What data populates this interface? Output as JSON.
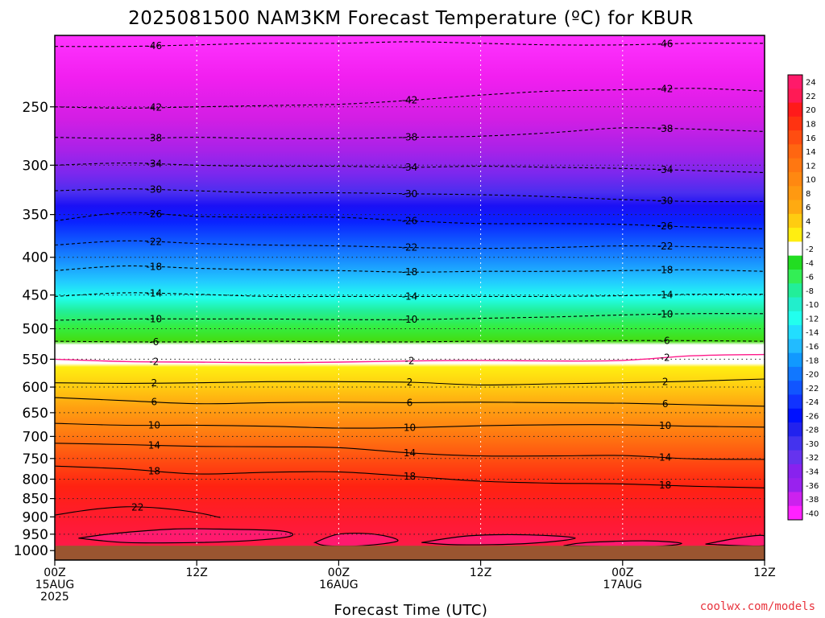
{
  "chart_data": {
    "type": "heatmap",
    "title": "2025081500 NAM3KM Forecast Temperature (ºC) for KBUR",
    "xlabel": "Forecast Time (UTC)",
    "x_ticks": [
      {
        "hour": 0,
        "lines": [
          "00Z",
          "15AUG",
          "2025"
        ]
      },
      {
        "hour": 12,
        "lines": [
          "12Z"
        ]
      },
      {
        "hour": 24,
        "lines": [
          "00Z",
          "16AUG"
        ]
      },
      {
        "hour": 36,
        "lines": [
          "12Z"
        ]
      },
      {
        "hour": 48,
        "lines": [
          "00Z",
          "17AUG"
        ]
      },
      {
        "hour": 60,
        "lines": [
          "12Z"
        ]
      }
    ],
    "xlim": [
      0,
      60
    ],
    "y_ticks": [
      "250",
      "300",
      "350",
      "400",
      "450",
      "500",
      "550",
      "600",
      "650",
      "700",
      "750",
      "800",
      "850",
      "900",
      "950",
      "1000"
    ],
    "y_scale": "log-pressure (hPa, inverted)",
    "ylim": [
      1030,
      200
    ],
    "surface_pressure": 985,
    "colorbar_labels": [
      "24",
      "22",
      "20",
      "18",
      "16",
      "14",
      "12",
      "10",
      "8",
      "6",
      "4",
      "2",
      "-2",
      "-4",
      "-6",
      "-8",
      "-10",
      "-12",
      "-14",
      "-16",
      "-18",
      "-20",
      "-22",
      "-24",
      "-26",
      "-28",
      "-30",
      "-32",
      "-34",
      "-36",
      "-38",
      "-40"
    ],
    "colorbar_colors": [
      "#ff1a6a",
      "#ff1a55",
      "#ff1a1a",
      "#ff3311",
      "#ff4d11",
      "#ff6611",
      "#ff7711",
      "#ff8811",
      "#ff9911",
      "#ffaa11",
      "#ffcc11",
      "#ffee11",
      "#ffffff",
      "#22dd22",
      "#33ee55",
      "#22ee99",
      "#22eecc",
      "#22ffee",
      "#22ddff",
      "#22bbff",
      "#1199ff",
      "#1177ff",
      "#1155ff",
      "#1133ff",
      "#0011ff",
      "#2222ee",
      "#4433ee",
      "#6633ee",
      "#8822ee",
      "#9922ee",
      "#cc22ee",
      "#ff22ff"
    ],
    "isotherms": [
      {
        "value": -46,
        "labels": [
          "-46",
          "-46"
        ],
        "points": [
          [
            0,
            207
          ],
          [
            6,
            207
          ],
          [
            12,
            206
          ],
          [
            18,
            205
          ],
          [
            24,
            205
          ],
          [
            30,
            204
          ],
          [
            36,
            205
          ],
          [
            42,
            206
          ],
          [
            48,
            206
          ],
          [
            54,
            205
          ],
          [
            60,
            205
          ]
        ]
      },
      {
        "value": -42,
        "labels": [
          "-42",
          "-42",
          "-42"
        ],
        "points": [
          [
            0,
            250
          ],
          [
            6,
            251
          ],
          [
            12,
            250
          ],
          [
            18,
            249
          ],
          [
            24,
            248
          ],
          [
            30,
            245
          ],
          [
            36,
            241
          ],
          [
            42,
            238
          ],
          [
            48,
            237
          ],
          [
            54,
            236
          ],
          [
            60,
            238
          ]
        ]
      },
      {
        "value": -38,
        "labels": [
          "-38",
          "-38",
          "-38"
        ],
        "points": [
          [
            0,
            275
          ],
          [
            6,
            276
          ],
          [
            12,
            275
          ],
          [
            18,
            276
          ],
          [
            24,
            276
          ],
          [
            30,
            275
          ],
          [
            36,
            274
          ],
          [
            42,
            271
          ],
          [
            48,
            267
          ],
          [
            54,
            268
          ],
          [
            60,
            270
          ]
        ]
      },
      {
        "value": -34,
        "labels": [
          "-34",
          "-34",
          "-34"
        ],
        "points": [
          [
            0,
            300
          ],
          [
            6,
            298
          ],
          [
            12,
            300
          ],
          [
            18,
            301
          ],
          [
            24,
            301
          ],
          [
            30,
            302
          ],
          [
            36,
            301
          ],
          [
            42,
            302
          ],
          [
            48,
            303
          ],
          [
            54,
            305
          ],
          [
            60,
            307
          ]
        ]
      },
      {
        "value": -30,
        "labels": [
          "-30",
          "-30",
          "-30"
        ],
        "points": [
          [
            0,
            325
          ],
          [
            6,
            323
          ],
          [
            12,
            325
          ],
          [
            18,
            327
          ],
          [
            24,
            327
          ],
          [
            30,
            328
          ],
          [
            36,
            329
          ],
          [
            42,
            331
          ],
          [
            48,
            334
          ],
          [
            54,
            336
          ],
          [
            60,
            336
          ]
        ]
      },
      {
        "value": -26,
        "labels": [
          "-26",
          "-26",
          "-26"
        ],
        "points": [
          [
            0,
            357
          ],
          [
            6,
            348
          ],
          [
            12,
            352
          ],
          [
            18,
            353
          ],
          [
            24,
            353
          ],
          [
            30,
            357
          ],
          [
            36,
            360
          ],
          [
            42,
            360
          ],
          [
            48,
            361
          ],
          [
            54,
            364
          ],
          [
            60,
            366
          ]
        ]
      },
      {
        "value": -22,
        "labels": [
          "-22",
          "-22",
          "-22"
        ],
        "points": [
          [
            0,
            385
          ],
          [
            6,
            380
          ],
          [
            12,
            383
          ],
          [
            18,
            385
          ],
          [
            24,
            386
          ],
          [
            30,
            388
          ],
          [
            36,
            389
          ],
          [
            42,
            388
          ],
          [
            48,
            386
          ],
          [
            54,
            387
          ],
          [
            60,
            389
          ]
        ]
      },
      {
        "value": -18,
        "labels": [
          "-18",
          "-18",
          "-18"
        ],
        "points": [
          [
            0,
            417
          ],
          [
            6,
            411
          ],
          [
            12,
            414
          ],
          [
            18,
            416
          ],
          [
            24,
            417
          ],
          [
            30,
            419
          ],
          [
            36,
            418
          ],
          [
            42,
            418
          ],
          [
            48,
            417
          ],
          [
            54,
            416
          ],
          [
            60,
            418
          ]
        ]
      },
      {
        "value": -14,
        "labels": [
          "-14",
          "-14",
          "-14"
        ],
        "points": [
          [
            0,
            452
          ],
          [
            6,
            447
          ],
          [
            12,
            449
          ],
          [
            18,
            452
          ],
          [
            24,
            452
          ],
          [
            30,
            452
          ],
          [
            36,
            452
          ],
          [
            42,
            452
          ],
          [
            48,
            451
          ],
          [
            54,
            449
          ],
          [
            60,
            449
          ]
        ]
      },
      {
        "value": -10,
        "labels": [
          "-10",
          "-10",
          "-10"
        ],
        "points": [
          [
            0,
            487
          ],
          [
            6,
            485
          ],
          [
            12,
            485
          ],
          [
            18,
            485
          ],
          [
            24,
            486
          ],
          [
            30,
            486
          ],
          [
            36,
            484
          ],
          [
            42,
            482
          ],
          [
            48,
            479
          ],
          [
            54,
            477
          ],
          [
            60,
            477
          ]
        ]
      },
      {
        "value": -6,
        "labels": [
          "-6",
          "-6"
        ],
        "points": [
          [
            0,
            520
          ],
          [
            6,
            521
          ],
          [
            12,
            521
          ],
          [
            18,
            520
          ],
          [
            24,
            521
          ],
          [
            30,
            521
          ],
          [
            36,
            520
          ],
          [
            42,
            520
          ],
          [
            48,
            519
          ],
          [
            54,
            519
          ],
          [
            60,
            520
          ]
        ]
      },
      {
        "value": -2,
        "labels": [
          "-2",
          "-2",
          "-2"
        ],
        "points": [
          [
            0,
            550
          ],
          [
            6,
            554
          ],
          [
            12,
            555
          ],
          [
            18,
            556
          ],
          [
            24,
            555
          ],
          [
            30,
            553
          ],
          [
            36,
            552
          ],
          [
            42,
            553
          ],
          [
            48,
            552
          ],
          [
            54,
            544
          ],
          [
            60,
            542
          ]
        ]
      },
      {
        "value": 2,
        "labels": [
          "2",
          "2",
          "2"
        ],
        "points": [
          [
            0,
            592
          ],
          [
            6,
            593
          ],
          [
            12,
            592
          ],
          [
            18,
            590
          ],
          [
            24,
            590
          ],
          [
            30,
            591
          ],
          [
            36,
            596
          ],
          [
            42,
            594
          ],
          [
            48,
            592
          ],
          [
            54,
            589
          ],
          [
            60,
            585
          ]
        ]
      },
      {
        "value": 6,
        "labels": [
          "6",
          "6",
          "6"
        ],
        "points": [
          [
            0,
            620
          ],
          [
            6,
            626
          ],
          [
            12,
            632
          ],
          [
            18,
            630
          ],
          [
            24,
            629
          ],
          [
            30,
            630
          ],
          [
            36,
            629
          ],
          [
            42,
            630
          ],
          [
            48,
            631
          ],
          [
            54,
            634
          ],
          [
            60,
            637
          ]
        ]
      },
      {
        "value": 10,
        "labels": [
          "10",
          "10",
          "10"
        ],
        "points": [
          [
            0,
            672
          ],
          [
            6,
            676
          ],
          [
            12,
            676
          ],
          [
            18,
            678
          ],
          [
            24,
            682
          ],
          [
            30,
            681
          ],
          [
            36,
            677
          ],
          [
            42,
            675
          ],
          [
            48,
            675
          ],
          [
            54,
            678
          ],
          [
            60,
            680
          ]
        ]
      },
      {
        "value": 14,
        "labels": [
          "14",
          "14",
          "14"
        ],
        "points": [
          [
            0,
            715
          ],
          [
            6,
            718
          ],
          [
            12,
            722
          ],
          [
            18,
            723
          ],
          [
            24,
            725
          ],
          [
            30,
            737
          ],
          [
            36,
            744
          ],
          [
            42,
            744
          ],
          [
            48,
            743
          ],
          [
            54,
            751
          ],
          [
            60,
            752
          ]
        ]
      },
      {
        "value": 18,
        "labels": [
          "18",
          "18",
          "18"
        ],
        "points": [
          [
            0,
            768
          ],
          [
            6,
            775
          ],
          [
            12,
            787
          ],
          [
            18,
            783
          ],
          [
            24,
            782
          ],
          [
            30,
            793
          ],
          [
            36,
            805
          ],
          [
            42,
            810
          ],
          [
            48,
            812
          ],
          [
            54,
            818
          ],
          [
            60,
            822
          ]
        ]
      },
      {
        "value": 22,
        "labels": [
          "22"
        ],
        "points": [
          [
            0,
            895
          ],
          [
            3,
            880
          ],
          [
            6,
            872
          ],
          [
            9,
            876
          ],
          [
            12,
            888
          ],
          [
            14,
            902
          ]
        ]
      }
    ],
    "warm_pockets_22": [
      {
        "points": [
          [
            2,
            962
          ],
          [
            5,
            948
          ],
          [
            10,
            935
          ],
          [
            14,
            935
          ],
          [
            19,
            940
          ],
          [
            20,
            955
          ],
          [
            17,
            968
          ],
          [
            12,
            975
          ],
          [
            6,
            975
          ]
        ]
      },
      {
        "points": [
          [
            22,
            975
          ],
          [
            24,
            950
          ],
          [
            27,
            950
          ],
          [
            29,
            970
          ],
          [
            26,
            985
          ],
          [
            23,
            985
          ]
        ]
      },
      {
        "points": [
          [
            31,
            975
          ],
          [
            35,
            955
          ],
          [
            40,
            952
          ],
          [
            44,
            962
          ],
          [
            40,
            978
          ],
          [
            34,
            982
          ]
        ]
      },
      {
        "points": [
          [
            43,
            985
          ],
          [
            45,
            975
          ],
          [
            50,
            970
          ],
          [
            53,
            978
          ],
          [
            50,
            988
          ]
        ]
      },
      {
        "points": [
          [
            55,
            980
          ],
          [
            58,
            960
          ],
          [
            60,
            955
          ],
          [
            60,
            985
          ]
        ]
      }
    ]
  },
  "credit": "coolwx.com/models"
}
